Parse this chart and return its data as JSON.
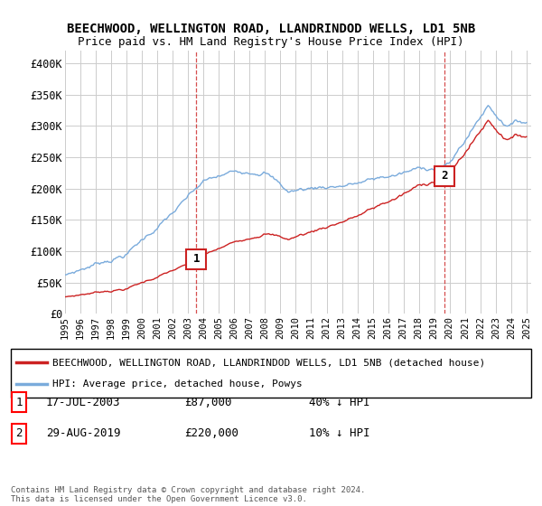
{
  "title": "BEECHWOOD, WELLINGTON ROAD, LLANDRINDOD WELLS, LD1 5NB",
  "subtitle": "Price paid vs. HM Land Registry's House Price Index (HPI)",
  "ylim": [
    0,
    420000
  ],
  "yticks": [
    0,
    50000,
    100000,
    150000,
    200000,
    250000,
    300000,
    350000,
    400000
  ],
  "ytick_labels": [
    "£0",
    "£50K",
    "£100K",
    "£150K",
    "£200K",
    "£250K",
    "£300K",
    "£350K",
    "£400K"
  ],
  "hpi_color": "#7aabdc",
  "price_color": "#cc2222",
  "legend_label_price": "BEECHWOOD, WELLINGTON ROAD, LLANDRINDOD WELLS, LD1 5NB (detached house)",
  "legend_label_hpi": "HPI: Average price, detached house, Powys",
  "sale1_date_num": 2003.54,
  "sale1_price": 87000,
  "sale1_label": "1",
  "sale1_date_str": "17-JUL-2003",
  "sale2_date_num": 2019.66,
  "sale2_price": 220000,
  "sale2_label": "2",
  "sale2_date_str": "29-AUG-2019",
  "copyright": "Contains HM Land Registry data © Crown copyright and database right 2024.\nThis data is licensed under the Open Government Licence v3.0.",
  "background_color": "#ffffff",
  "grid_color": "#cccccc"
}
